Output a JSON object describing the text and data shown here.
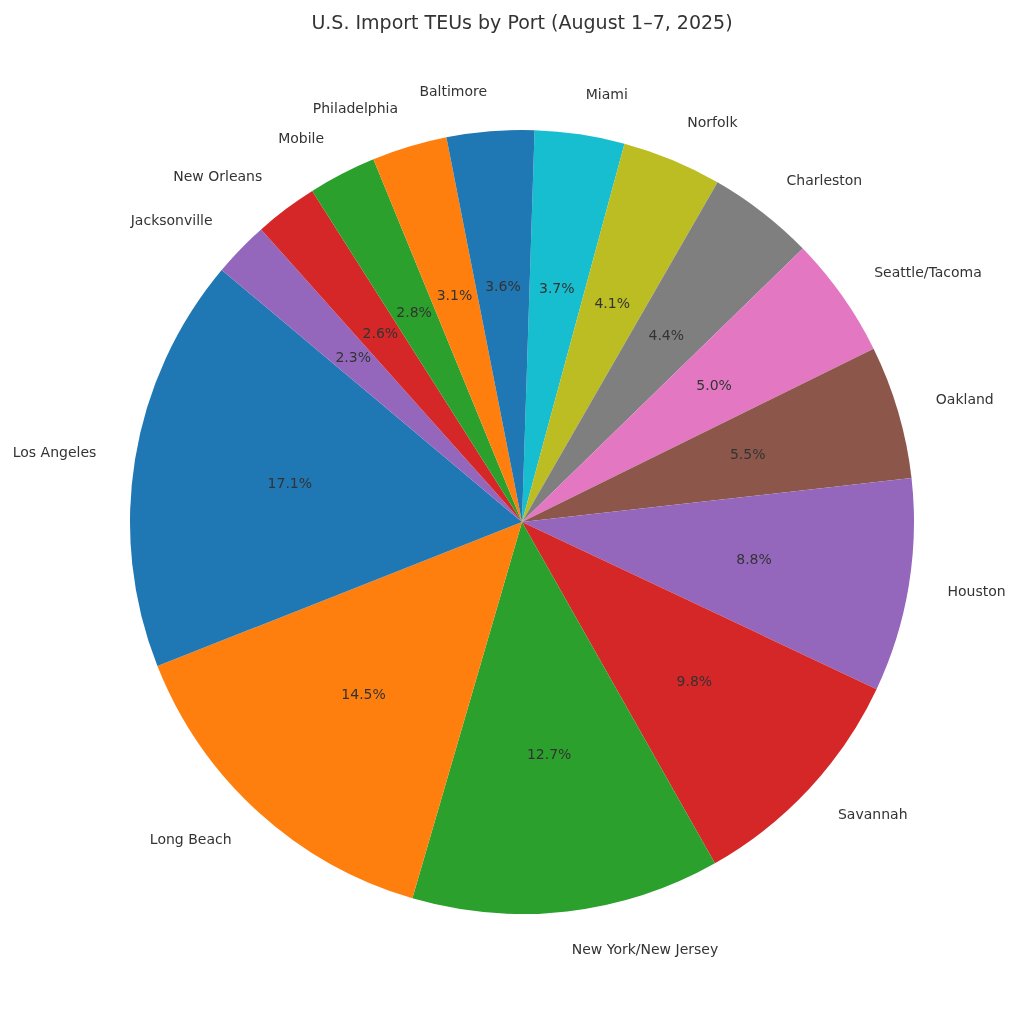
{
  "chart_data": {
    "type": "pie",
    "title": "U.S. Import TEUs by Port (August 1–7, 2025)",
    "categories": [
      "Miami",
      "Norfolk",
      "Charleston",
      "Seattle/Tacoma",
      "Oakland",
      "Houston",
      "Savannah",
      "New York/New Jersey",
      "Long Beach",
      "Los Angeles",
      "Jacksonville",
      "New Orleans",
      "Mobile",
      "Philadelphia",
      "Baltimore"
    ],
    "values": [
      3.7,
      4.1,
      4.4,
      5.0,
      5.5,
      8.8,
      9.8,
      12.7,
      14.5,
      17.1,
      2.3,
      2.6,
      2.8,
      3.1,
      3.6
    ],
    "colors": [
      "#17becf",
      "#bcbd22",
      "#7f7f7f",
      "#e377c2",
      "#8c564b",
      "#9467bd",
      "#d62728",
      "#2ca02c",
      "#ff7f0e",
      "#1f77b4",
      "#9467bd",
      "#d62728",
      "#2ca02c",
      "#ff7f0e",
      "#1f77b4"
    ],
    "value_labels": [
      "3.7%",
      "4.1%",
      "4.4%",
      "5.0%",
      "5.5%",
      "8.8%",
      "9.8%",
      "12.7%",
      "14.5%",
      "17.1%",
      "2.3%",
      "2.6%",
      "2.8%",
      "3.1%",
      "3.6%"
    ],
    "legend": false
  }
}
